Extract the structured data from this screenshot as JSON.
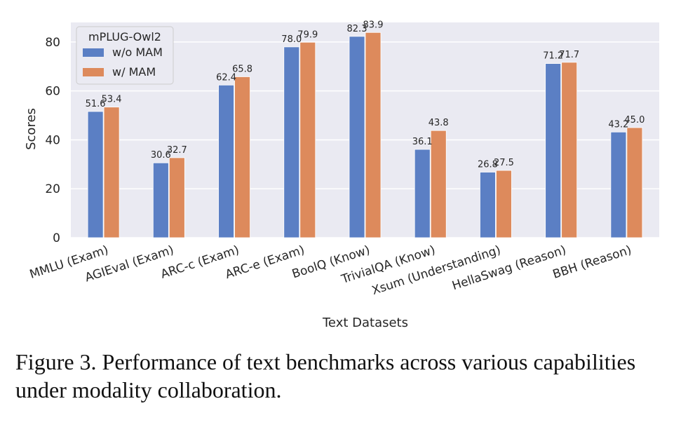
{
  "chart_data": {
    "type": "bar",
    "categories": [
      "MMLU (Exam)",
      "AGIEval (Exam)",
      "ARC-c (Exam)",
      "ARC-e (Exam)",
      "BoolQ (Know)",
      "TrivialQA (Know)",
      "Xsum (Understanding)",
      "HellaSwag (Reason)",
      "BBH (Reason)"
    ],
    "series": [
      {
        "name": "w/o MAM",
        "values": [
          51.6,
          30.6,
          62.4,
          78.0,
          82.3,
          36.1,
          26.8,
          71.2,
          43.2
        ],
        "labels": [
          "51.6",
          "30.6",
          "62.4",
          "78.0",
          "82.3",
          "36.1",
          "26.8",
          "71.2",
          "43.2"
        ],
        "color": "#5b7fc4"
      },
      {
        "name": "w/ MAM",
        "values": [
          53.4,
          32.7,
          65.8,
          79.9,
          83.9,
          43.8,
          27.5,
          71.7,
          45.0
        ],
        "labels": [
          "53.4",
          "32.7",
          "65.8",
          "79.9",
          "83.9",
          "43.8",
          "27.5",
          "71.7",
          "45.0"
        ],
        "color": "#dd8a5c"
      }
    ],
    "xlabel": "Text Datasets",
    "ylabel": "Scores",
    "ylim": [
      0,
      88
    ],
    "yticks": [
      "0",
      "20",
      "40",
      "60",
      "80"
    ],
    "grid": true,
    "legend": {
      "title": "mPLUG-Owl2",
      "placement": "top-left"
    },
    "background_color": "#eaeaf2"
  },
  "caption": "Figure 3. Performance of text benchmarks across various capabilities under modality collaboration."
}
